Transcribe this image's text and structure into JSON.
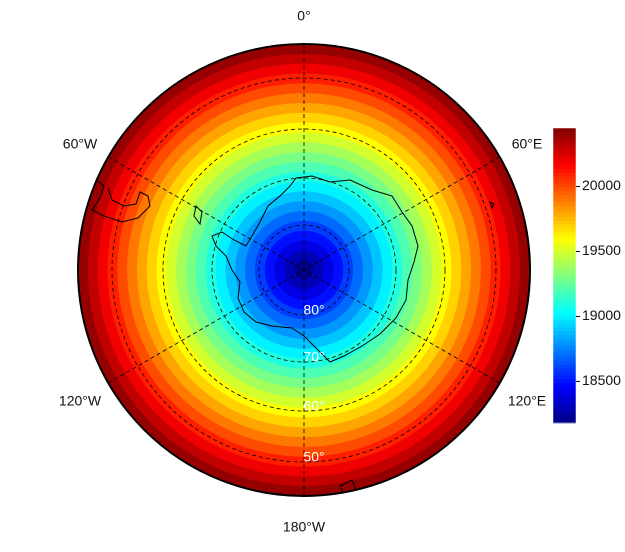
{
  "map": {
    "meridian_labels": [
      "0°",
      "60°E",
      "120°E",
      "180°W",
      "120°W",
      "60°W"
    ],
    "parallel_labels": [
      "80°",
      "70°",
      "60°",
      "50°"
    ],
    "contour_levels": [
      20400,
      20300,
      20200,
      20100,
      20000,
      19900,
      19800,
      19700,
      19600,
      19500,
      19400,
      19300,
      19200,
      19100,
      19000,
      18900,
      18800,
      18700,
      18600,
      18500,
      18400,
      18300,
      18200
    ],
    "colorbar": {
      "range": [
        18180,
        20450
      ],
      "ticks": [
        18500,
        19000,
        19500,
        20000
      ]
    }
  }
}
